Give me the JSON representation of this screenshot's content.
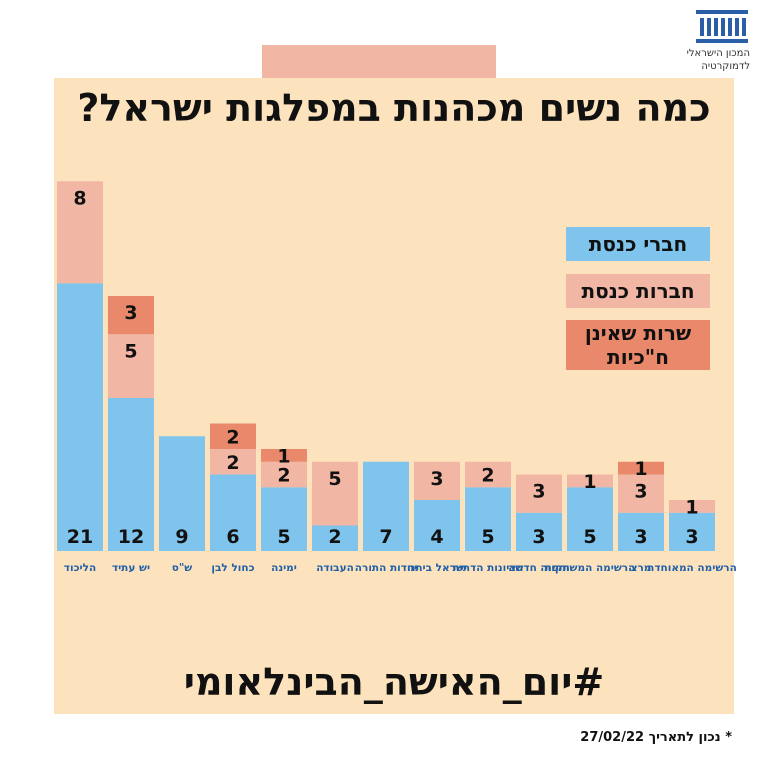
{
  "colors": {
    "male": "#7ec4ec",
    "female": "#f2b6a4",
    "minister": "#e9886a",
    "panel": "#fde3bd"
  },
  "header": {
    "title": "כמה נשים מכהנות במפלגות ישראל?",
    "logo_icon": "institute-building-icon",
    "logo_line1": "המכון הישראלי",
    "logo_line2": "לדמוקרטיה"
  },
  "hashtag": "#יום_האישה_הבינלאומי",
  "footnote": "* נכון לתאריך 27/02/22",
  "chart_data": {
    "type": "bar",
    "stacked": true,
    "title": "כמה נשים מכהנות במפלגות ישראל?",
    "categories": [
      "הליכוד",
      "יש עתיד",
      "ש\"ס",
      "כחול לבן",
      "ימינה",
      "העבודה",
      "יהדות התורה",
      "ישראל ביתנו",
      "הציונות הדתית",
      "תקווה חדשה",
      "הרשימה המשותפת",
      "מרצ",
      "הרשימה המאוחדת"
    ],
    "series": [
      {
        "name": "חברי כנסת",
        "values": [
          21,
          12,
          9,
          6,
          5,
          2,
          7,
          4,
          5,
          3,
          5,
          3,
          3
        ]
      },
      {
        "name": "חברות כנסת",
        "values": [
          8,
          5,
          0,
          2,
          2,
          5,
          0,
          3,
          2,
          3,
          1,
          3,
          1
        ]
      },
      {
        "name": "שרות שאינן ח\"כיות",
        "values": [
          0,
          3,
          0,
          2,
          1,
          0,
          0,
          0,
          0,
          0,
          0,
          1,
          0
        ]
      }
    ],
    "legend": "right",
    "grid": false
  }
}
